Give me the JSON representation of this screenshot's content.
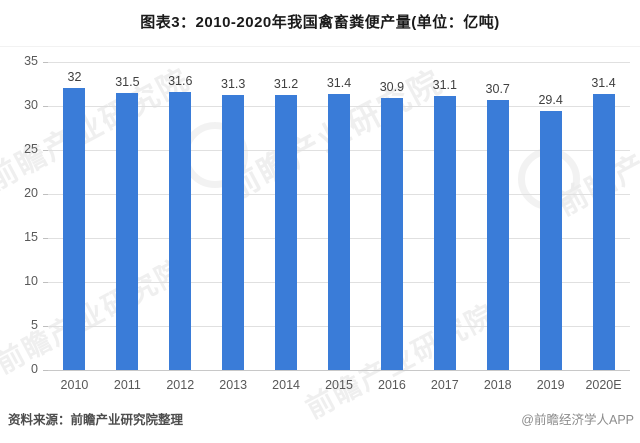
{
  "title": "图表3：2010-2020年我国禽畜粪便产量(单位：亿吨)",
  "footer": {
    "source": "资料来源：前瞻产业研究院整理",
    "credit": "@前瞻经济学人APP"
  },
  "watermark": {
    "text": "前瞻产业研究院"
  },
  "colors": {
    "bar": "#3A7CD8",
    "grid": "#E0E0E0",
    "baseline": "#C8C8C8",
    "tick": "#BFBFBF",
    "axis_text": "#595959",
    "value_text": "#404040"
  },
  "chart_data": {
    "type": "bar",
    "title": "图表3：2010-2020年我国禽畜粪便产量(单位：亿吨)",
    "unit": "亿吨",
    "categories": [
      "2010",
      "2011",
      "2012",
      "2013",
      "2014",
      "2015",
      "2016",
      "2017",
      "2018",
      "2019",
      "2020E"
    ],
    "values": [
      32,
      31.5,
      31.6,
      31.3,
      31.2,
      31.4,
      30.9,
      31.1,
      30.7,
      29.4,
      31.4
    ],
    "value_labels": [
      "32",
      "31.5",
      "31.6",
      "31.3",
      "31.2",
      "31.4",
      "30.9",
      "31.1",
      "30.7",
      "29.4",
      "31.4"
    ],
    "xlabel": "",
    "ylabel": "",
    "ylim": [
      0,
      35
    ],
    "yticks": [
      0,
      5,
      10,
      15,
      20,
      25,
      30,
      35
    ],
    "grid": true,
    "legend": false
  }
}
